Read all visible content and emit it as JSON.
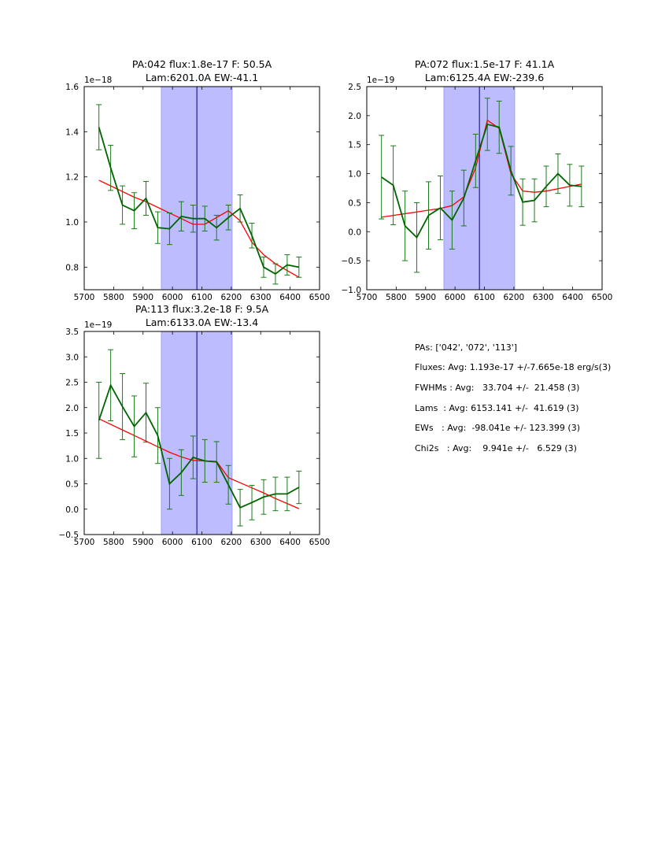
{
  "chart_data": [
    {
      "type": "line",
      "title_line1": "PA:042 flux:1.8e-17 F: 50.5A",
      "title_line2": "Lam:6201.0A EW:-41.1",
      "xlim": [
        5700,
        6500
      ],
      "ylim": [
        0.7,
        1.6
      ],
      "xticks": [
        5700,
        5800,
        5900,
        6000,
        6100,
        6200,
        6300,
        6400,
        6500
      ],
      "yticks": [
        0.8,
        1.0,
        1.2,
        1.4,
        1.6
      ],
      "ytick_labels": [
        "0.8",
        "1.0",
        "1.2",
        "1.4",
        "1.6"
      ],
      "offset_text": "1e−18",
      "band": [
        5962,
        6203
      ],
      "vline": 6083,
      "series": [
        {
          "name": "data",
          "color": "#006400",
          "x": [
            5750,
            5790,
            5830,
            5870,
            5910,
            5950,
            5990,
            6030,
            6070,
            6110,
            6150,
            6190,
            6230,
            6270,
            6310,
            6350,
            6390,
            6430
          ],
          "y": [
            1.42,
            1.24,
            1.075,
            1.05,
            1.105,
            0.975,
            0.97,
            1.025,
            1.015,
            1.015,
            0.975,
            1.02,
            1.06,
            0.94,
            0.8,
            0.77,
            0.81,
            0.8
          ],
          "err": [
            0.1,
            0.1,
            0.085,
            0.08,
            0.075,
            0.07,
            0.07,
            0.065,
            0.06,
            0.055,
            0.055,
            0.055,
            0.06,
            0.055,
            0.045,
            0.045,
            0.045,
            0.045
          ]
        },
        {
          "name": "model",
          "color": "#ff0000",
          "x": [
            5750,
            5790,
            5830,
            5870,
            5910,
            5950,
            5990,
            6030,
            6070,
            6110,
            6150,
            6190,
            6230,
            6270,
            6310,
            6350,
            6390,
            6430
          ],
          "y": [
            1.185,
            1.16,
            1.135,
            1.11,
            1.09,
            1.065,
            1.04,
            1.015,
            0.99,
            0.99,
            1.02,
            1.05,
            1.005,
            0.91,
            0.855,
            0.815,
            0.785,
            0.755
          ]
        }
      ]
    },
    {
      "type": "line",
      "title_line1": "PA:072 flux:1.5e-17 F: 41.1A",
      "title_line2": "Lam:6125.4A EW:-239.6",
      "xlim": [
        5700,
        6500
      ],
      "ylim": [
        -1.0,
        2.5
      ],
      "xticks": [
        5700,
        5800,
        5900,
        6000,
        6100,
        6200,
        6300,
        6400,
        6500
      ],
      "yticks": [
        -1.0,
        -0.5,
        0.0,
        0.5,
        1.0,
        1.5,
        2.0,
        2.5
      ],
      "ytick_labels": [
        "−1.0",
        "−0.5",
        "0.0",
        "0.5",
        "1.0",
        "1.5",
        "2.0",
        "2.5"
      ],
      "offset_text": "1e−19",
      "band": [
        5962,
        6203
      ],
      "vline": 6083,
      "series": [
        {
          "name": "data",
          "color": "#006400",
          "x": [
            5750,
            5790,
            5830,
            5870,
            5910,
            5950,
            5990,
            6030,
            6070,
            6110,
            6150,
            6190,
            6230,
            6270,
            6310,
            6350,
            6390,
            6430
          ],
          "y": [
            0.94,
            0.8,
            0.1,
            -0.1,
            0.28,
            0.41,
            0.2,
            0.58,
            1.22,
            1.85,
            1.8,
            1.05,
            0.51,
            0.54,
            0.78,
            1.0,
            0.8,
            0.78
          ],
          "err": [
            0.72,
            0.68,
            0.6,
            0.6,
            0.58,
            0.55,
            0.5,
            0.48,
            0.46,
            0.45,
            0.45,
            0.42,
            0.4,
            0.37,
            0.35,
            0.34,
            0.36,
            0.35
          ]
        },
        {
          "name": "model",
          "color": "#ff0000",
          "x": [
            5750,
            5790,
            5830,
            5870,
            5910,
            5950,
            5990,
            6030,
            6070,
            6110,
            6150,
            6190,
            6230,
            6270,
            6310,
            6350,
            6390,
            6430
          ],
          "y": [
            0.25,
            0.28,
            0.31,
            0.34,
            0.37,
            0.4,
            0.45,
            0.6,
            1.1,
            1.92,
            1.78,
            1.0,
            0.7,
            0.68,
            0.7,
            0.74,
            0.78,
            0.82
          ]
        }
      ]
    },
    {
      "type": "line",
      "title_line1": "PA:113 flux:3.2e-18 F: 9.5A",
      "title_line2": "Lam:6133.0A EW:-13.4",
      "xlim": [
        5700,
        6500
      ],
      "ylim": [
        -0.5,
        3.5
      ],
      "xticks": [
        5700,
        5800,
        5900,
        6000,
        6100,
        6200,
        6300,
        6400,
        6500
      ],
      "yticks": [
        -0.5,
        0.0,
        0.5,
        1.0,
        1.5,
        2.0,
        2.5,
        3.0,
        3.5
      ],
      "ytick_labels": [
        "−0.5",
        "0.0",
        "0.5",
        "1.0",
        "1.5",
        "2.0",
        "2.5",
        "3.0",
        "3.5"
      ],
      "offset_text": "1e−19",
      "band": [
        5962,
        6203
      ],
      "vline": 6083,
      "series": [
        {
          "name": "data",
          "color": "#006400",
          "x": [
            5750,
            5790,
            5830,
            5870,
            5910,
            5950,
            5990,
            6030,
            6070,
            6110,
            6150,
            6190,
            6230,
            6270,
            6310,
            6350,
            6390,
            6430
          ],
          "y": [
            1.75,
            2.44,
            2.02,
            1.63,
            1.9,
            1.45,
            0.5,
            0.72,
            1.02,
            0.95,
            0.93,
            0.48,
            0.03,
            0.13,
            0.24,
            0.3,
            0.3,
            0.43
          ],
          "err": [
            0.75,
            0.7,
            0.65,
            0.6,
            0.58,
            0.55,
            0.5,
            0.45,
            0.42,
            0.42,
            0.4,
            0.38,
            0.36,
            0.34,
            0.34,
            0.33,
            0.33,
            0.32
          ]
        },
        {
          "name": "model",
          "color": "#ff0000",
          "x": [
            5750,
            5790,
            5830,
            5870,
            5910,
            5950,
            5990,
            6030,
            6070,
            6110,
            6150,
            6190,
            6230,
            6270,
            6310,
            6350,
            6390,
            6430
          ],
          "y": [
            1.78,
            1.67,
            1.56,
            1.45,
            1.34,
            1.23,
            1.12,
            1.03,
            0.96,
            0.95,
            0.94,
            0.62,
            0.52,
            0.42,
            0.32,
            0.21,
            0.11,
            0.01
          ]
        }
      ]
    }
  ],
  "summary": {
    "pas": "PAs: ['042', '072', '113']",
    "fluxes": "Fluxes: Avg: 1.193e-17 +/-7.665e-18 erg/s(3)",
    "fwhms": "FWHMs : Avg:   33.704 +/-  21.458 (3)",
    "lams": "Lams  : Avg: 6153.141 +/-  41.619 (3)",
    "ews": "EWs   : Avg:  -98.041e +/- 123.399 (3)",
    "chi2s": "Chi2s   : Avg:    9.941e +/-   6.529 (3)"
  }
}
